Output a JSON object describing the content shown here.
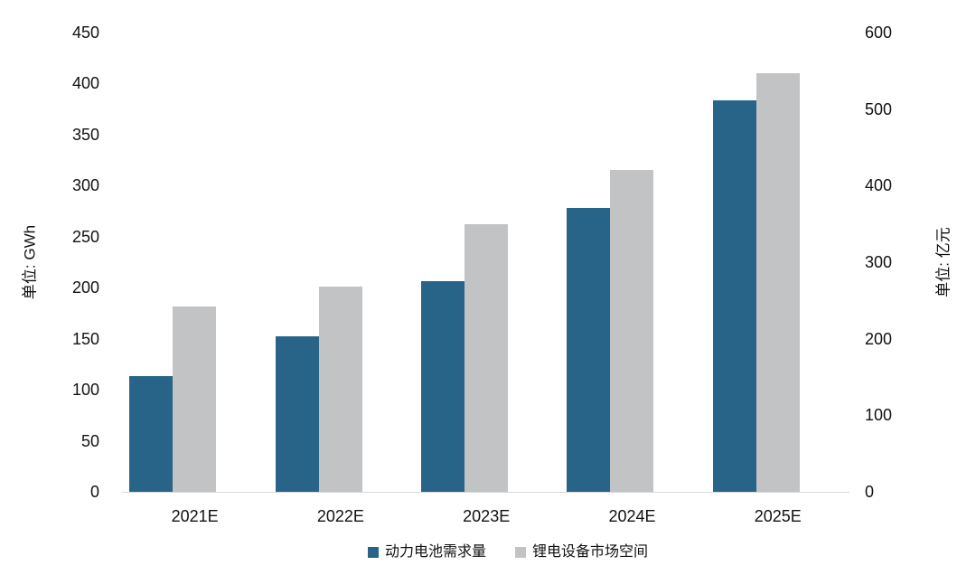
{
  "chart_data": {
    "type": "bar",
    "title": "",
    "categories": [
      "2021E",
      "2022E",
      "2023E",
      "2024E",
      "2025E"
    ],
    "series": [
      {
        "name": "动力电池需求量",
        "axis": "left",
        "unit": "GWh",
        "color": "#286487",
        "values": [
          113,
          152,
          206,
          278,
          384
        ]
      },
      {
        "name": "锂电设备市场空间",
        "axis": "right",
        "unit": "亿元",
        "color": "#C2C3C5",
        "values": [
          242,
          268,
          350,
          421,
          547
        ]
      }
    ],
    "left_axis": {
      "label": "单位: GWh",
      "min": 0,
      "max": 450,
      "step": 50
    },
    "right_axis": {
      "label": "单位: 亿元",
      "min": 0,
      "max": 600,
      "step": 100
    },
    "grid": false,
    "legend_position": "bottom",
    "baseline_color": "#D9D9D9",
    "text_color": "#111111"
  }
}
